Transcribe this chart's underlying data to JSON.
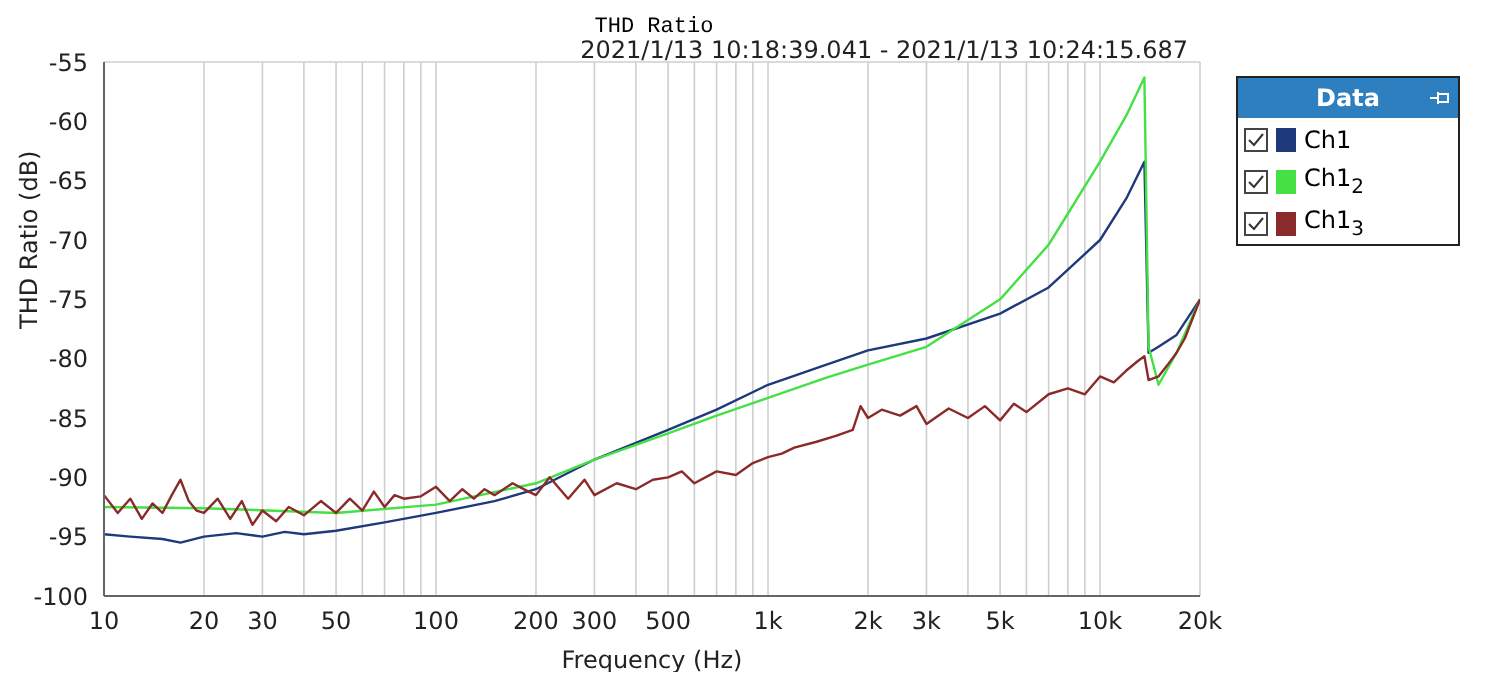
{
  "chart_data": {
    "type": "line",
    "title": "THD Ratio",
    "subtitle": "2021/1/13 10:18:39.041 - 2021/1/13 10:24:15.687",
    "xlabel": "Frequency (Hz)",
    "ylabel": "THD Ratio (dB)",
    "legend_title": "Data",
    "log": "x",
    "grid": true,
    "legend": "top right",
    "marker": "none",
    "line_style": "solid",
    "xlim": [
      10,
      20000
    ],
    "ylim": [
      -100,
      -55
    ],
    "xticks": [
      10,
      20,
      30,
      {
        "value": 40,
        "label": null
      },
      50,
      {
        "value": 60,
        "label": null
      },
      {
        "value": 70,
        "label": null
      },
      {
        "value": 80,
        "label": null
      },
      {
        "value": 90,
        "label": null
      },
      100,
      200,
      300,
      {
        "value": 400,
        "label": null
      },
      500,
      {
        "value": 600,
        "label": null
      },
      {
        "value": 700,
        "label": null
      },
      {
        "value": 800,
        "label": null
      },
      {
        "value": 900,
        "label": null
      },
      {
        "value": 1000,
        "label": "1k"
      },
      {
        "value": 2000,
        "label": "2k"
      },
      {
        "value": 3000,
        "label": "3k"
      },
      {
        "value": 4000,
        "label": null
      },
      {
        "value": 5000,
        "label": "5k"
      },
      {
        "value": 6000,
        "label": null
      },
      {
        "value": 7000,
        "label": null
      },
      {
        "value": 8000,
        "label": null
      },
      {
        "value": 9000,
        "label": null
      },
      {
        "value": 10000,
        "label": "10k"
      },
      {
        "value": 20000,
        "label": "20k"
      }
    ],
    "yticks": [
      -100,
      -95,
      -90,
      -85,
      -80,
      -75,
      -70,
      -65,
      -60,
      -55
    ],
    "series": [
      {
        "name": "Ch1",
        "color": "#1f3a7a",
        "x": [
          10,
          12,
          15,
          17,
          20,
          25,
          30,
          35,
          40,
          50,
          70,
          100,
          150,
          200,
          300,
          500,
          700,
          1000,
          1500,
          2000,
          3000,
          5000,
          7000,
          10000,
          12000,
          13600,
          14000,
          15000,
          17000,
          20000
        ],
        "values": [
          -94.8,
          -95,
          -95.2,
          -95.5,
          -95,
          -94.7,
          -95,
          -94.6,
          -94.8,
          -94.5,
          -93.8,
          -93,
          -92,
          -91,
          -88.5,
          -86,
          -84.3,
          -82.2,
          -80.5,
          -79.3,
          -78.3,
          -76.2,
          -74,
          -70,
          -66.5,
          -63.4,
          -79.5,
          -79,
          -78,
          -75
        ]
      },
      {
        "name": "Ch1$_{2}$",
        "color": "#44e044",
        "x": [
          10,
          20,
          50,
          100,
          200,
          300,
          500,
          700,
          1000,
          1500,
          2000,
          3000,
          5000,
          7000,
          10000,
          12000,
          13600,
          14000,
          15000,
          17000,
          20000
        ],
        "values": [
          -92.5,
          -92.6,
          -93,
          -92.3,
          -90.5,
          -88.5,
          -86.3,
          -84.8,
          -83.3,
          -81.6,
          -80.5,
          -79,
          -75,
          -70.4,
          -63.4,
          -59.5,
          -56.3,
          -79,
          -82.2,
          -79.5,
          -75
        ]
      },
      {
        "name": "Ch1$_{3}$",
        "color": "#8b2a2a",
        "x": [
          10,
          11,
          12,
          13,
          14,
          15,
          16,
          17,
          18,
          19,
          20,
          22,
          24,
          26,
          28,
          30,
          33,
          36,
          40,
          45,
          50,
          55,
          60,
          65,
          70,
          75,
          80,
          90,
          100,
          110,
          120,
          130,
          140,
          150,
          170,
          190,
          200,
          220,
          250,
          280,
          300,
          350,
          400,
          450,
          500,
          550,
          600,
          700,
          800,
          900,
          1000,
          1100,
          1200,
          1400,
          1600,
          1800,
          1900,
          2000,
          2200,
          2500,
          2800,
          3000,
          3500,
          4000,
          4500,
          5000,
          5500,
          6000,
          7000,
          8000,
          9000,
          10000,
          11000,
          12000,
          13000,
          13600,
          14000,
          15000,
          16000,
          17000,
          18000,
          20000
        ],
        "values": [
          -91.5,
          -93,
          -91.8,
          -93.5,
          -92.2,
          -93,
          -91.5,
          -90.2,
          -92,
          -92.8,
          -93,
          -91.8,
          -93.5,
          -92,
          -94,
          -92.8,
          -93.7,
          -92.5,
          -93.2,
          -92,
          -93,
          -91.8,
          -92.8,
          -91.2,
          -92.5,
          -91.5,
          -91.8,
          -91.6,
          -90.8,
          -92,
          -91,
          -91.8,
          -91,
          -91.5,
          -90.5,
          -91.2,
          -91.5,
          -90,
          -91.8,
          -90.2,
          -91.5,
          -90.5,
          -91,
          -90.2,
          -90,
          -89.5,
          -90.5,
          -89.5,
          -89.8,
          -88.8,
          -88.3,
          -88,
          -87.5,
          -87,
          -86.5,
          -86,
          -84,
          -85,
          -84.3,
          -84.8,
          -84,
          -85.5,
          -84.2,
          -85,
          -84,
          -85.2,
          -83.8,
          -84.5,
          -83,
          -82.5,
          -83,
          -81.5,
          -82,
          -81,
          -80.2,
          -79.8,
          -81.8,
          -81.5,
          -80.5,
          -79.5,
          -78.3,
          -75
        ]
      }
    ]
  }
}
